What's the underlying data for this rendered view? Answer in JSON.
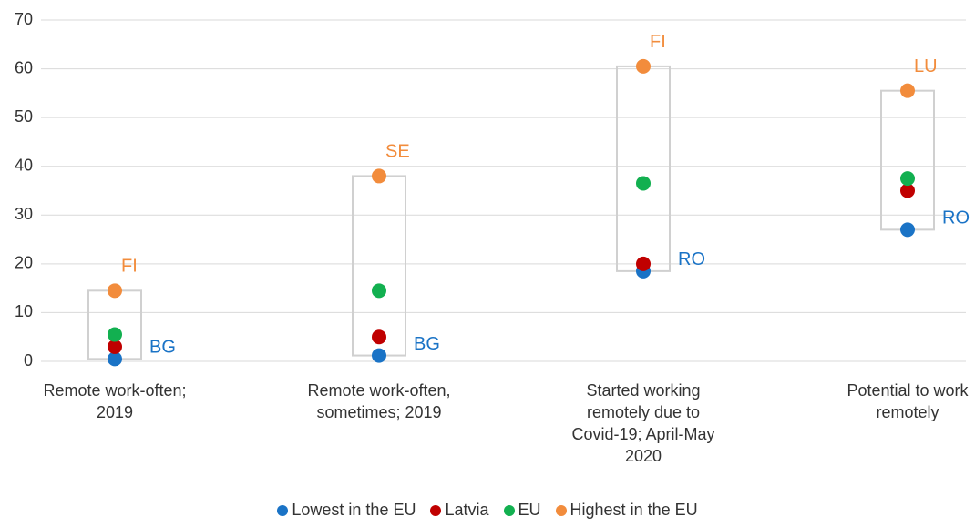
{
  "chart_data": {
    "type": "dot",
    "categories": [
      "Remote work-often; 2019",
      "Remote work-often, sometimes; 2019",
      "Started working remotely due to Covid-19; April-May 2020",
      "Potential to work remotely"
    ],
    "series": [
      {
        "name": "Lowest in the EU",
        "color": "#1a73c6",
        "values": [
          0.5,
          1.2,
          18.5,
          27
        ],
        "labels": [
          "BG",
          "BG",
          "RO",
          "RO"
        ]
      },
      {
        "name": "Latvia",
        "color": "#c00000",
        "values": [
          3,
          5,
          20,
          35
        ]
      },
      {
        "name": "EU",
        "color": "#12b050",
        "values": [
          5.5,
          14.5,
          36.5,
          37.5
        ]
      },
      {
        "name": "Highest in the EU",
        "color": "#f28c3c",
        "values": [
          14.5,
          38,
          60.5,
          55.5
        ],
        "labels": [
          "FI",
          "SE",
          "FI",
          "LU"
        ]
      }
    ],
    "ylim": [
      0,
      70
    ],
    "yticks": [
      0,
      10,
      20,
      30,
      40,
      50,
      60,
      70
    ],
    "grid": true
  }
}
